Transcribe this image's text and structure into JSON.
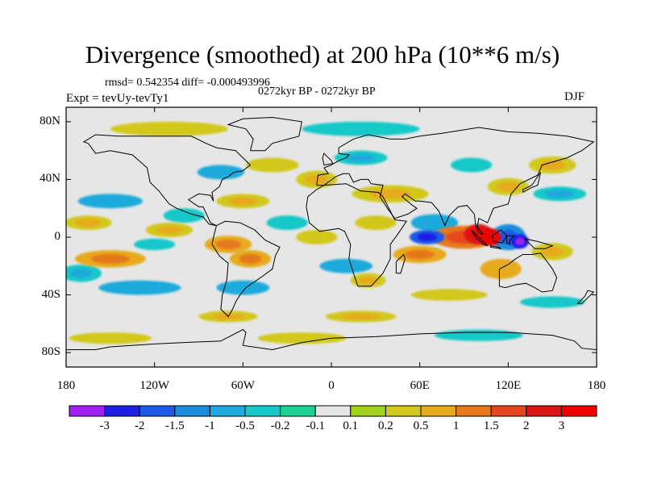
{
  "title": "Divergence (smoothed) at 200 hPa (10**6 m/s)",
  "stats": "rmsd= 0.542354 diff= -0.000493996",
  "period": "0272kyr BP - 0272kyr BP",
  "experiment": "Expt = tevUy-tevTy1",
  "season": "DJF",
  "map": {
    "lat_ticks": [
      "80N",
      "40N",
      "0",
      "40S",
      "80S"
    ],
    "lon_ticks": [
      "180",
      "120W",
      "60W",
      "0",
      "60E",
      "120E",
      "180"
    ],
    "background_color": "#e6e6e6",
    "coastline_color": "#000000"
  },
  "colorbar": {
    "labels": [
      "-3",
      "-2",
      "-1.5",
      "-1",
      "-0.5",
      "-0.2",
      "-0.1",
      "0.1",
      "0.2",
      "0.5",
      "1",
      "1.5",
      "2",
      "3"
    ],
    "colors": [
      "#a020f0",
      "#1e1ee6",
      "#1e5ae6",
      "#1e8cdc",
      "#1eaadc",
      "#19c8c8",
      "#1ed296",
      "#e6e6e6",
      "#a0d21e",
      "#d2c81e",
      "#e6aa1e",
      "#e6781e",
      "#e6461e",
      "#dc1414",
      "#f00000"
    ]
  },
  "chart_data": {
    "type": "heatmap",
    "title": "Divergence (smoothed) at 200 hPa (10**6 m/s)",
    "subtitle": "0272kyr BP - 0272kyr BP",
    "legend_placement": "bottom",
    "xlim": [
      -180,
      180
    ],
    "ylim": [
      -90,
      90
    ],
    "x_ticks": [
      "180",
      "120W",
      "60W",
      "0",
      "60E",
      "120E",
      "180"
    ],
    "y_ticks": [
      "80N",
      "40N",
      "0",
      "40S",
      "80S"
    ],
    "color_levels": [
      -3,
      -2,
      -1.5,
      -1,
      -0.5,
      -0.2,
      -0.1,
      0.1,
      0.2,
      0.5,
      1,
      1.5,
      2,
      3
    ],
    "annotations": [
      "rmsd= 0.542354 diff= -0.000493996",
      "Expt = tevUy-tevTy1",
      "DJF"
    ]
  }
}
